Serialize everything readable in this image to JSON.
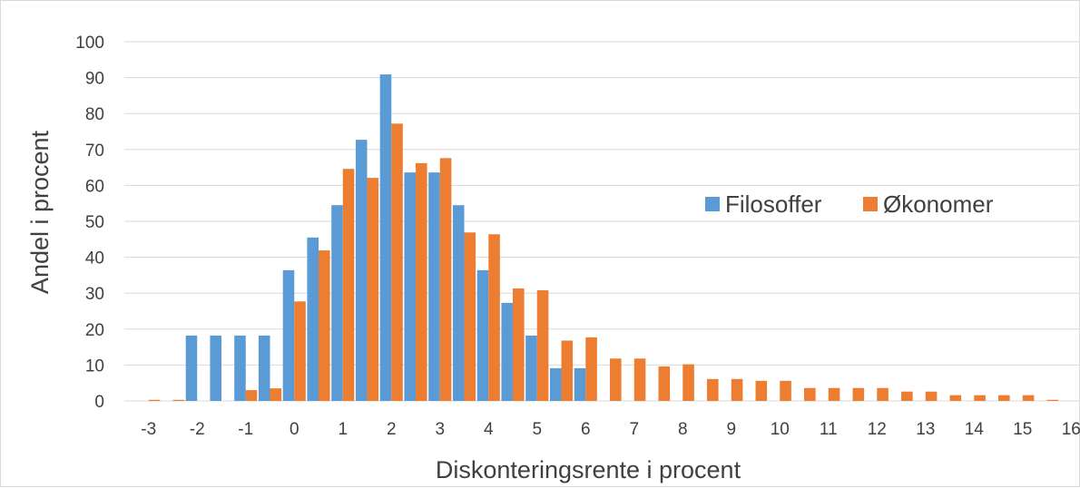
{
  "chart_data": {
    "type": "bar",
    "title": "",
    "xlabel": "Diskonteringsrente i procent",
    "ylabel": "Andel i procent",
    "ylim": [
      0,
      100
    ],
    "y_ticks": [
      "0",
      "10",
      "20",
      "30",
      "40",
      "50",
      "60",
      "70",
      "80",
      "90",
      "100"
    ],
    "x_tick_labels": [
      "-3",
      "-2",
      "-1",
      "0",
      "1",
      "2",
      "3",
      "4",
      "5",
      "6",
      "7",
      "8",
      "9",
      "10",
      "11",
      "12",
      "13",
      "14",
      "15",
      "16"
    ],
    "categories": [
      -3,
      -2.5,
      -2,
      -1.5,
      -1,
      -0.5,
      0,
      0.5,
      1,
      1.5,
      2,
      2.5,
      3,
      3.5,
      4,
      4.5,
      5,
      5.5,
      6,
      6.5,
      7,
      7.5,
      8,
      8.5,
      9,
      9.5,
      10,
      10.5,
      11,
      11.5,
      12,
      12.5,
      13,
      13.5,
      14,
      14.5,
      15,
      15.5
    ],
    "series": [
      {
        "name": "Filosoffer",
        "color": "#5b9bd5",
        "values": [
          0,
          0,
          18.2,
          18.2,
          18.2,
          18.2,
          36.4,
          45.5,
          54.5,
          72.7,
          90.9,
          63.6,
          63.6,
          54.5,
          36.4,
          27.3,
          18.2,
          9.1,
          9.1,
          0,
          0,
          0,
          0,
          0,
          0,
          0,
          0,
          0,
          0,
          0,
          0,
          0,
          0,
          0,
          0,
          0,
          0,
          0
        ]
      },
      {
        "name": "Økonomer",
        "color": "#ed7d31",
        "values": [
          0.3,
          0.3,
          0,
          0,
          3,
          3.5,
          27.7,
          41.9,
          64.6,
          62.1,
          77.2,
          66.2,
          67.6,
          46.9,
          46.4,
          31.3,
          30.8,
          16.8,
          17.7,
          11.8,
          11.8,
          9.6,
          10.2,
          6.1,
          6.1,
          5.6,
          5.6,
          3.6,
          3.6,
          3.6,
          3.6,
          2.6,
          2.6,
          1.6,
          1.6,
          1.6,
          1.6,
          0.3
        ]
      }
    ],
    "grid": true,
    "legend_position": "right"
  }
}
